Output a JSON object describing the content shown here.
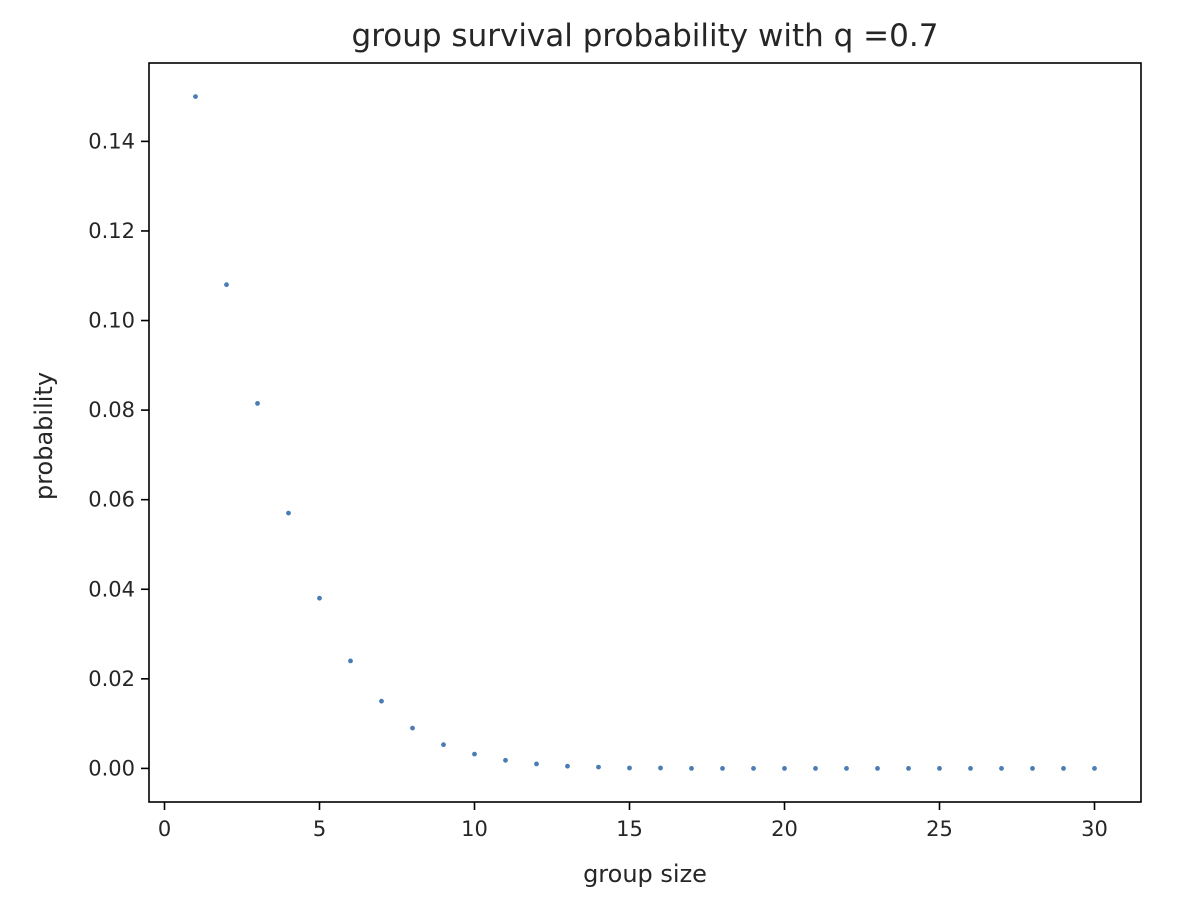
{
  "chart_data": {
    "type": "scatter",
    "title": "group survival probability with q =0.7",
    "xlabel": "group size",
    "ylabel": "probability",
    "xlim": [
      -0.5,
      31.5
    ],
    "ylim": [
      -0.0075,
      0.1575
    ],
    "xticks": [
      0,
      5,
      10,
      15,
      20,
      25,
      30
    ],
    "xtick_labels": [
      "0",
      "5",
      "10",
      "15",
      "20",
      "25",
      "30"
    ],
    "yticks": [
      0.0,
      0.02,
      0.04,
      0.06,
      0.08,
      0.1,
      0.12,
      0.14
    ],
    "ytick_labels": [
      "0.00",
      "0.02",
      "0.04",
      "0.06",
      "0.08",
      "0.10",
      "0.12",
      "0.14"
    ],
    "grid": false,
    "marker_color": "#4a7db3",
    "x": [
      1,
      2,
      3,
      4,
      5,
      6,
      7,
      8,
      9,
      10,
      11,
      12,
      13,
      14,
      15,
      16,
      17,
      18,
      19,
      20,
      21,
      22,
      23,
      24,
      25,
      26,
      27,
      28,
      29,
      30
    ],
    "y": [
      0.15,
      0.108,
      0.0815,
      0.057,
      0.038,
      0.024,
      0.015,
      0.009,
      0.0053,
      0.0032,
      0.0018,
      0.001,
      0.0005,
      0.0003,
      0.0001,
      0.0001,
      0.0,
      0.0,
      0.0,
      0.0,
      0.0,
      0.0,
      0.0,
      0.0,
      0.0,
      0.0,
      0.0,
      0.0,
      0.0,
      0.0
    ]
  }
}
